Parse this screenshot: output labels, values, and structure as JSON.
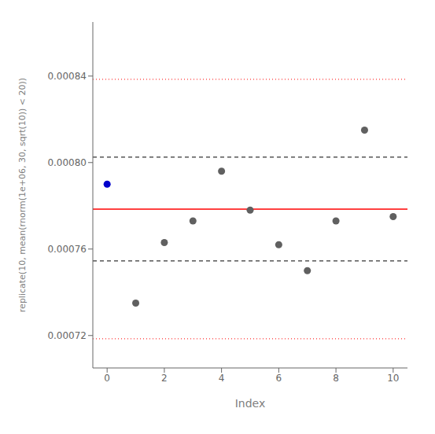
{
  "chart_data": {
    "type": "scatter",
    "xlabel": "Index",
    "ylabel": "replicate(10, mean(rnorm(1e+06, 30, sqrt(10)) < 20))",
    "xlim": [
      -0.5,
      10.5
    ],
    "ylim": [
      0.000705,
      0.000865
    ],
    "xticks": [
      0,
      2,
      4,
      6,
      8,
      10
    ],
    "yticks": [
      0.00072,
      0.00076,
      {
        "value": 0.0008,
        "label": "0.00080"
      },
      0.00084
    ],
    "x": [
      0,
      1,
      2,
      3,
      4,
      5,
      6,
      7,
      8,
      9,
      10
    ],
    "values": [
      0.00079,
      0.000735,
      0.000763,
      0.000773,
      0.000796,
      0.000778,
      0.000762,
      0.00075,
      0.000773,
      0.000815,
      0.000775
    ],
    "colors": [
      "#0000cc",
      "#606060",
      "#606060",
      "#606060",
      "#606060",
      "#606060",
      "#606060",
      "#606060",
      "#606060",
      "#606060",
      "#606060"
    ],
    "hlines": [
      {
        "value": 0.0008385,
        "color": "#ff0000",
        "line_style": "dotted"
      },
      {
        "value": 0.0008025,
        "color": "#000000",
        "line_style": "dashed"
      },
      {
        "value": 0.0007785,
        "color": "#ff0000",
        "line_style": "solid"
      },
      {
        "value": 0.0007545,
        "color": "#000000",
        "line_style": "dashed"
      },
      {
        "value": 0.0007185,
        "color": "#ff0000",
        "line_style": "dotted"
      }
    ]
  }
}
